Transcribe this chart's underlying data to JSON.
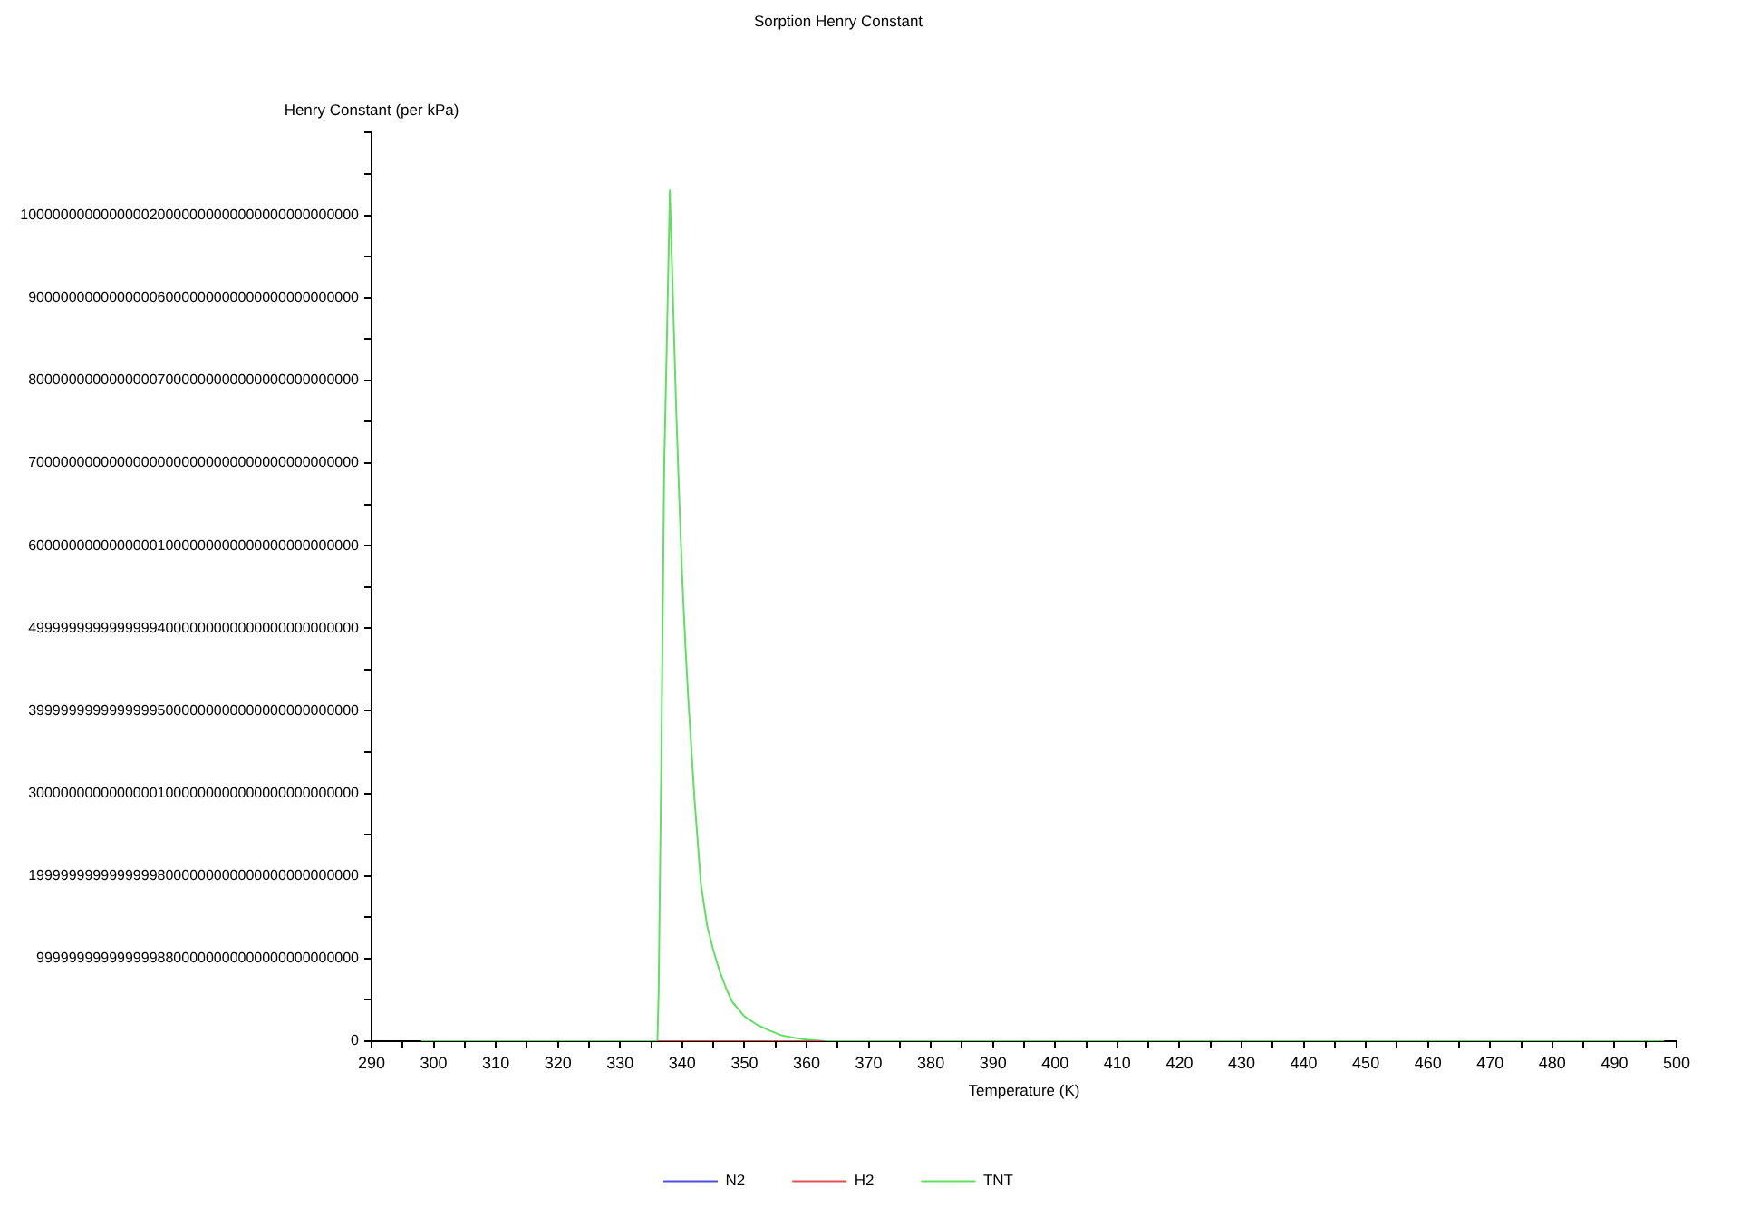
{
  "chart_data": {
    "type": "line",
    "title": "Sorption Henry Constant",
    "xlabel": "Temperature (K)",
    "ylabel": "Henry Constant (per kPa)",
    "series": [
      {
        "name": "N2",
        "color": "#5050e0"
      },
      {
        "name": "H2",
        "color": "#e05050",
        "x": [
          336,
          363
        ],
        "values": [
          0,
          0
        ]
      },
      {
        "name": "TNT",
        "color": "#60e060",
        "x": [
          298,
          336,
          336.2,
          336.6,
          337.1,
          337.5,
          338,
          338.5,
          339,
          339.5,
          340,
          340.5,
          341,
          341.5,
          342,
          343,
          344,
          345,
          346,
          347,
          348,
          350,
          352,
          354,
          356,
          358,
          360,
          363,
          498
        ],
        "values": [
          0,
          0,
          6e+39,
          3.2e+40,
          7e+40,
          8.4e+40,
          1.03e+41,
          9e+40,
          7.7e+40,
          6.6e+40,
          5.6e+40,
          4.8e+40,
          4.1e+40,
          3.5e+40,
          2.9e+40,
          1.9e+40,
          1.4e+40,
          1.1e+40,
          8.5e+39,
          6.5e+39,
          4.8e+39,
          3e+39,
          2e+39,
          1.3e+39,
          7e+38,
          4e+38,
          2e+38,
          0,
          0
        ]
      }
    ],
    "xlim": [
      290,
      500
    ],
    "xticks": [
      290,
      {
        "value": 295,
        "label": null
      },
      300,
      {
        "value": 305,
        "label": null
      },
      310,
      {
        "value": 315,
        "label": null
      },
      320,
      {
        "value": 325,
        "label": null
      },
      330,
      {
        "value": 335,
        "label": null
      },
      340,
      {
        "value": 345,
        "label": null
      },
      350,
      {
        "value": 355,
        "label": null
      },
      360,
      {
        "value": 365,
        "label": null
      },
      370,
      {
        "value": 375,
        "label": null
      },
      380,
      {
        "value": 385,
        "label": null
      },
      390,
      {
        "value": 395,
        "label": null
      },
      400,
      {
        "value": 405,
        "label": null
      },
      410,
      {
        "value": 415,
        "label": null
      },
      420,
      {
        "value": 425,
        "label": null
      },
      430,
      {
        "value": 435,
        "label": null
      },
      440,
      {
        "value": 445,
        "label": null
      },
      450,
      {
        "value": 455,
        "label": null
      },
      460,
      {
        "value": 465,
        "label": null
      },
      470,
      {
        "value": 475,
        "label": null
      },
      480,
      {
        "value": 485,
        "label": null
      },
      490,
      {
        "value": 495,
        "label": null
      },
      500
    ],
    "ylim": [
      0,
      1.1e+41
    ],
    "yticks": [
      0,
      {
        "value": 5e+39,
        "label": null
      },
      {
        "value": 9.999999999999999e+39,
        "label": "9999999999999998800000000000000000000000"
      },
      {
        "value": 1.5e+40,
        "label": null
      },
      {
        "value": 1.9999999999999998e+40,
        "label": "19999999999999998000000000000000000000000"
      },
      {
        "value": 2.5e+40,
        "label": null
      },
      {
        "value": 3e+40,
        "label": "30000000000000001000000000000000000000000"
      },
      {
        "value": 3.5e+40,
        "label": null
      },
      {
        "value": 3.9999999999999996e+40,
        "label": "39999999999999995000000000000000000000000"
      },
      {
        "value": 4.5e+40,
        "label": null
      },
      {
        "value": 4.999999999999999e+40,
        "label": "49999999999999994000000000000000000000000"
      },
      {
        "value": 5.5e+40,
        "label": null
      },
      {
        "value": 6e+40,
        "label": "60000000000000001000000000000000000000000"
      },
      {
        "value": 6.5e+40,
        "label": null
      },
      {
        "value": 7e+40,
        "label": "70000000000000000000000000000000000000000"
      },
      {
        "value": 7.5e+40,
        "label": null
      },
      {
        "value": 8e+40,
        "label": "80000000000000007000000000000000000000000"
      },
      {
        "value": 8.5e+40,
        "label": null
      },
      {
        "value": 9e+40,
        "label": "90000000000000006000000000000000000000000"
      },
      {
        "value": 9.5e+40,
        "label": null
      },
      {
        "value": 1.0000000000000002e+41,
        "label": "100000000000000020000000000000000000000000"
      },
      {
        "value": 1.05e+41,
        "label": null
      },
      {
        "value": 1.1e+41,
        "label": null
      }
    ],
    "grid": false,
    "legend": "bottom",
    "marker": "none",
    "line_style": "solid"
  }
}
